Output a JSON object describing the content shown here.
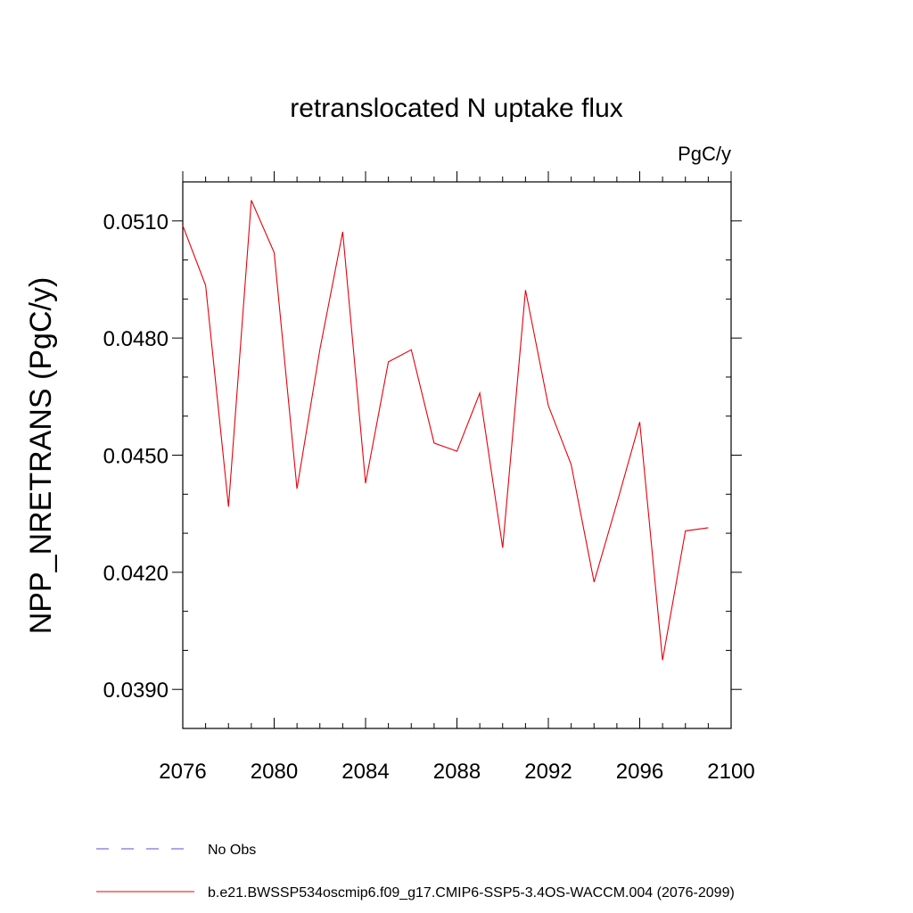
{
  "chart_data": {
    "type": "line",
    "title": "retranslocated N uptake flux",
    "units_label": "PgC/y",
    "ylabel": "NPP_NRETRANS  (PgC/y)",
    "xlabel": "",
    "xlim": [
      2076,
      2100
    ],
    "ylim": [
      0.038,
      0.052
    ],
    "xticks": [
      2076,
      2080,
      2084,
      2088,
      2092,
      2096,
      2100
    ],
    "yticks": [
      0.039,
      0.042,
      0.045,
      0.048,
      0.051
    ],
    "ytick_labels": [
      "0.0390",
      "0.0420",
      "0.0450",
      "0.0480",
      "0.0510"
    ],
    "grid": false,
    "series": [
      {
        "name": "b.e21.BWSSP534oscmip6.f09_g17.CMIP6-SSP5-3.4OS-WACCM.004 (2076-2099)",
        "color": "#e8000b",
        "x": [
          2076,
          2077,
          2078,
          2079,
          2080,
          2081,
          2082,
          2083,
          2084,
          2085,
          2086,
          2087,
          2088,
          2089,
          2090,
          2091,
          2092,
          2093,
          2094,
          2095,
          2096,
          2097,
          2098,
          2099
        ],
        "values": [
          0.05088,
          0.04935,
          0.04368,
          0.05153,
          0.05019,
          0.04414,
          0.04771,
          0.05072,
          0.04428,
          0.04739,
          0.0477,
          0.04531,
          0.0451,
          0.04659,
          0.04263,
          0.04923,
          0.04627,
          0.04476,
          0.04175,
          0.04377,
          0.04585,
          0.03975,
          0.04306,
          0.04314
        ]
      }
    ],
    "legend": [
      {
        "label": "No Obs",
        "color": "#5a4fcf",
        "style": "dashed"
      },
      {
        "label": "b.e21.BWSSP534oscmip6.f09_g17.CMIP6-SSP5-3.4OS-WACCM.004 (2076-2099)",
        "color": "#e8000b",
        "style": "solid"
      }
    ]
  }
}
